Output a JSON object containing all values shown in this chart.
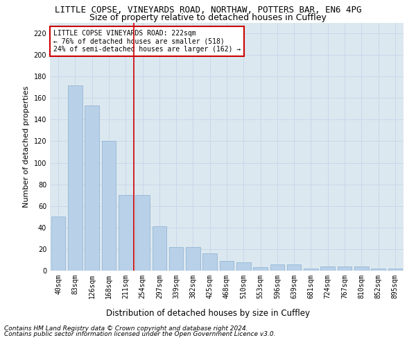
{
  "title1": "LITTLE COPSE, VINEYARDS ROAD, NORTHAW, POTTERS BAR, EN6 4PG",
  "title2": "Size of property relative to detached houses in Cuffley",
  "xlabel": "Distribution of detached houses by size in Cuffley",
  "ylabel": "Number of detached properties",
  "categories": [
    "40sqm",
    "83sqm",
    "126sqm",
    "168sqm",
    "211sqm",
    "254sqm",
    "297sqm",
    "339sqm",
    "382sqm",
    "425sqm",
    "468sqm",
    "510sqm",
    "553sqm",
    "596sqm",
    "639sqm",
    "681sqm",
    "724sqm",
    "767sqm",
    "810sqm",
    "852sqm",
    "895sqm"
  ],
  "values": [
    50,
    172,
    153,
    120,
    70,
    70,
    41,
    22,
    22,
    16,
    9,
    8,
    3,
    6,
    6,
    2,
    4,
    4,
    4,
    2,
    2
  ],
  "bar_color": "#b8d0e8",
  "bar_edge_color": "#8ab0d0",
  "vline_color": "#cc0000",
  "vline_index": 4.5,
  "annotation_text": "LITTLE COPSE VINEYARDS ROAD: 222sqm\n← 76% of detached houses are smaller (518)\n24% of semi-detached houses are larger (162) →",
  "annotation_box_color": "#ffffff",
  "annotation_box_edge": "#cc0000",
  "ylim": [
    0,
    230
  ],
  "yticks": [
    0,
    20,
    40,
    60,
    80,
    100,
    120,
    140,
    160,
    180,
    200,
    220
  ],
  "grid_color": "#c8d8ea",
  "bg_color": "#dce8f0",
  "footer1": "Contains HM Land Registry data © Crown copyright and database right 2024.",
  "footer2": "Contains public sector information licensed under the Open Government Licence v3.0.",
  "title_fontsize": 9,
  "subtitle_fontsize": 9,
  "axis_label_fontsize": 8,
  "tick_fontsize": 7,
  "annotation_fontsize": 7,
  "footer_fontsize": 6.5
}
